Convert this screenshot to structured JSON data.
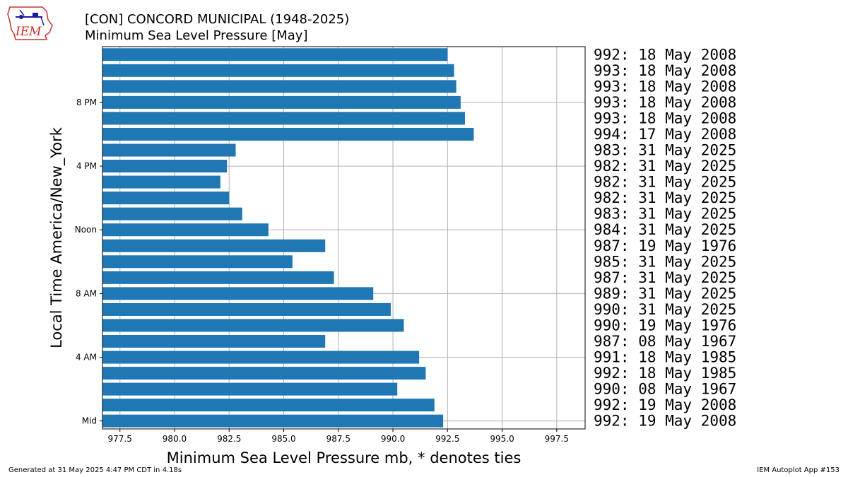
{
  "header": {
    "logo_text": "IEM",
    "title_line1": "[CON] CONCORD MUNICIPAL (1948-2025)",
    "title_line2": "Minimum Sea Level Pressure [May]"
  },
  "footer": {
    "generated": "Generated at 31 May 2025 4:47 PM CDT in 4.18s",
    "app": "IEM Autoplot App #153"
  },
  "colors": {
    "bar": "#1f77b4",
    "grid": "#b0b0b0"
  },
  "chart_data": {
    "type": "bar",
    "orientation": "horizontal",
    "xlabel": "Minimum Sea Level Pressure mb, * denotes ties",
    "ylabel": "Local Time America/New_York",
    "xlim": [
      976.7,
      998.8
    ],
    "xticks": [
      977.5,
      980.0,
      982.5,
      985.0,
      987.5,
      990.0,
      992.5,
      995.0,
      997.5
    ],
    "xtick_labels": [
      "977.5",
      "980.0",
      "982.5",
      "985.0",
      "987.5",
      "990.0",
      "992.5",
      "995.0",
      "997.5"
    ],
    "ylim": [
      -0.5,
      23.5
    ],
    "yticks": [
      0,
      4,
      8,
      12,
      16,
      20
    ],
    "ytick_labels": [
      "Mid",
      "4 AM",
      "8 AM",
      "Noon",
      "4 PM",
      "8 PM"
    ],
    "grid": true,
    "hours": [
      0,
      1,
      2,
      3,
      4,
      5,
      6,
      7,
      8,
      9,
      10,
      11,
      12,
      13,
      14,
      15,
      16,
      17,
      18,
      19,
      20,
      21,
      22,
      23
    ],
    "values": [
      992.3,
      991.9,
      990.2,
      991.5,
      991.2,
      986.9,
      990.5,
      989.9,
      989.1,
      987.3,
      985.4,
      986.9,
      984.3,
      983.1,
      982.5,
      982.1,
      982.4,
      982.8,
      993.7,
      993.3,
      993.1,
      992.9,
      992.8,
      992.5
    ],
    "annotations": [
      "992: 19 May 2008",
      "992: 19 May 2008",
      "990: 08 May 1967",
      "992: 18 May 1985",
      "991: 18 May 1985",
      "987: 08 May 1967",
      "990: 19 May 1976",
      "990: 31 May 2025",
      "989: 31 May 2025",
      "987: 31 May 2025",
      "985: 31 May 2025",
      "987: 19 May 1976",
      "984: 31 May 2025",
      "983: 31 May 2025",
      "982: 31 May 2025",
      "982: 31 May 2025",
      "982: 31 May 2025",
      "983: 31 May 2025",
      "994: 17 May 2008",
      "993: 18 May 2008",
      "993: 18 May 2008",
      "993: 18 May 2008",
      "993: 18 May 2008",
      "992: 18 May 2008"
    ]
  }
}
